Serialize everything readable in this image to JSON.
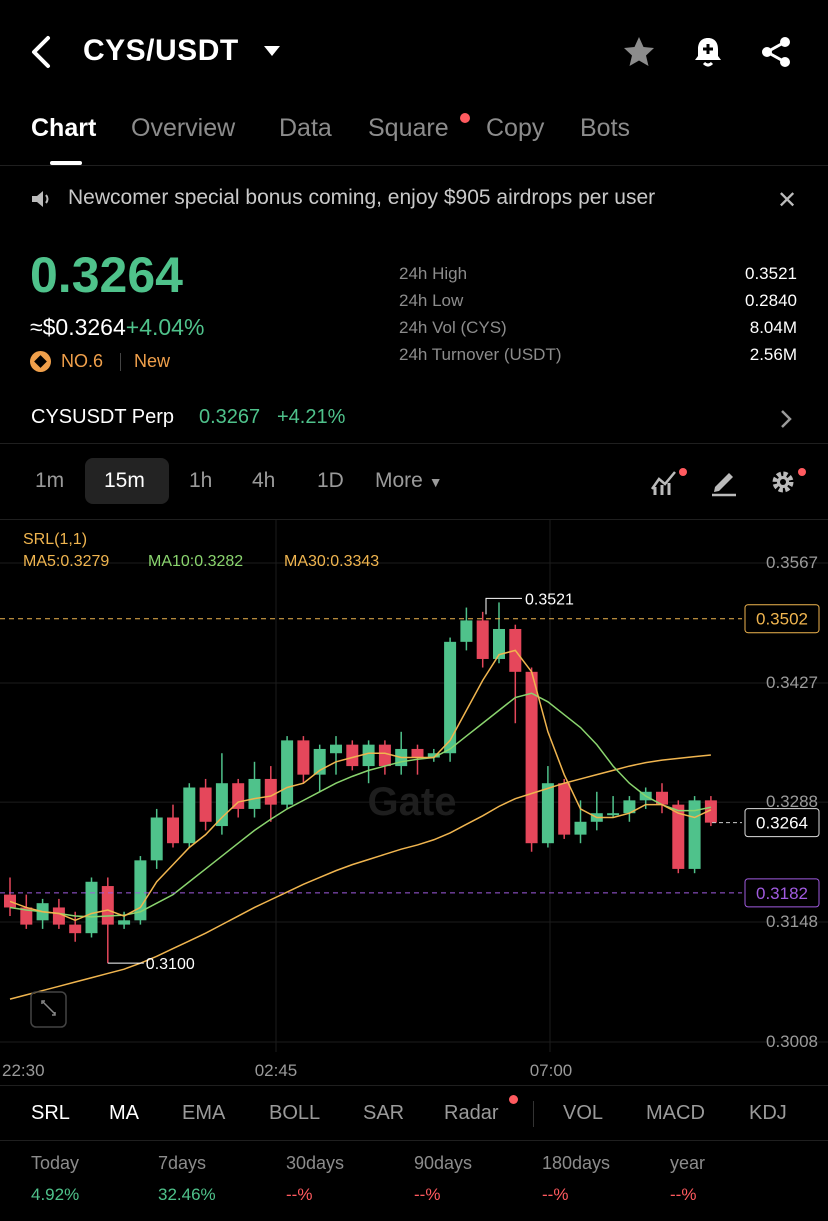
{
  "header": {
    "pair": "CYS/USDT",
    "icons": [
      "back-arrow-icon",
      "dropdown-caret-icon",
      "star-icon",
      "bell-plus-icon",
      "share-icon"
    ]
  },
  "tabs": [
    {
      "label": "Chart",
      "active": true
    },
    {
      "label": "Overview"
    },
    {
      "label": "Data"
    },
    {
      "label": "Square",
      "badge": true
    },
    {
      "label": "Copy"
    },
    {
      "label": "Bots"
    }
  ],
  "notice": {
    "text": "Newcomer special bonus coming, enjoy $905 airdrops per user"
  },
  "price": {
    "last": "0.3264",
    "usd": "≈$0.3264",
    "change": "+4.04%",
    "rank": "NO.6",
    "tag": "New"
  },
  "stats": [
    {
      "label": "24h High",
      "value": "0.3521"
    },
    {
      "label": "24h Low",
      "value": "0.2840"
    },
    {
      "label": "24h Vol (CYS)",
      "value": "8.04M"
    },
    {
      "label": "24h Turnover (USDT)",
      "value": "2.56M"
    }
  ],
  "perp": {
    "name": "CYSUSDT Perp",
    "price": "0.3267",
    "change": "+4.21%"
  },
  "timeframes": {
    "items": [
      "1m",
      "15m",
      "1h",
      "4h",
      "1D"
    ],
    "active": "15m",
    "more": "More"
  },
  "legend": {
    "srl": "SRL(1,1)",
    "ma5": "MA5:0.3279",
    "ma10": "MA10:0.3282",
    "ma30": "MA30:0.3343"
  },
  "indicators": {
    "items": [
      "SRL",
      "MA",
      "EMA",
      "BOLL",
      "SAR",
      "Radar",
      "VOL",
      "MACD",
      "KDJ"
    ],
    "active": [
      "SRL",
      "MA"
    ]
  },
  "performance": [
    {
      "label": "Today",
      "value": "4.92%"
    },
    {
      "label": "7days",
      "value": "32.46%"
    },
    {
      "label": "30days",
      "value": "--%"
    },
    {
      "label": "90days",
      "value": "--%"
    },
    {
      "label": "180days",
      "value": "--%"
    },
    {
      "label": "year",
      "value": "--%"
    }
  ],
  "colors": {
    "up": "#4fc28b",
    "down": "#e5475b",
    "ma5": "#f0b54f",
    "ma10": "#8ad46e",
    "ma30": "#f0b54f",
    "support": "#a15be0",
    "negative": "#ff5a5f"
  },
  "chart_data": {
    "type": "candlestick",
    "y_ticks": [
      "0.3567",
      "0.3427",
      "0.3288",
      "0.3148",
      "0.3008"
    ],
    "x_ticks": [
      "22:30",
      "02:45",
      "07:00"
    ],
    "ylim": [
      0.3008,
      0.3567
    ],
    "price_tag": "0.3264",
    "resistance": "0.3502",
    "support": "0.3182",
    "high_label": "0.3521",
    "low_label": "0.3100",
    "candles": [
      [
        0.318,
        0.3165,
        0.32,
        0.3155
      ],
      [
        0.3165,
        0.3145,
        0.318,
        0.314
      ],
      [
        0.315,
        0.317,
        0.3175,
        0.314
      ],
      [
        0.3165,
        0.3145,
        0.3175,
        0.314
      ],
      [
        0.3145,
        0.3135,
        0.316,
        0.3125
      ],
      [
        0.3135,
        0.3195,
        0.32,
        0.313
      ],
      [
        0.319,
        0.3145,
        0.32,
        0.31
      ],
      [
        0.3145,
        0.315,
        0.316,
        0.314
      ],
      [
        0.315,
        0.322,
        0.3225,
        0.3145
      ],
      [
        0.322,
        0.327,
        0.328,
        0.321
      ],
      [
        0.327,
        0.324,
        0.3285,
        0.3235
      ],
      [
        0.324,
        0.3305,
        0.331,
        0.3235
      ],
      [
        0.3305,
        0.3265,
        0.3315,
        0.3255
      ],
      [
        0.326,
        0.331,
        0.3345,
        0.325
      ],
      [
        0.331,
        0.328,
        0.3315,
        0.327
      ],
      [
        0.328,
        0.3315,
        0.3335,
        0.327
      ],
      [
        0.3315,
        0.3285,
        0.333,
        0.3265
      ],
      [
        0.3285,
        0.336,
        0.3365,
        0.328
      ],
      [
        0.336,
        0.332,
        0.3365,
        0.331
      ],
      [
        0.332,
        0.335,
        0.3355,
        0.33
      ],
      [
        0.3345,
        0.3355,
        0.3365,
        0.332
      ],
      [
        0.3355,
        0.333,
        0.336,
        0.3325
      ],
      [
        0.333,
        0.3355,
        0.336,
        0.331
      ],
      [
        0.3355,
        0.333,
        0.336,
        0.332
      ],
      [
        0.333,
        0.335,
        0.337,
        0.332
      ],
      [
        0.335,
        0.334,
        0.3355,
        0.332
      ],
      [
        0.334,
        0.3345,
        0.335,
        0.3335
      ],
      [
        0.3345,
        0.3475,
        0.348,
        0.3335
      ],
      [
        0.3475,
        0.35,
        0.3515,
        0.3465
      ],
      [
        0.35,
        0.3455,
        0.351,
        0.3445
      ],
      [
        0.3455,
        0.349,
        0.3521,
        0.345
      ],
      [
        0.349,
        0.344,
        0.3495,
        0.338
      ],
      [
        0.344,
        0.324,
        0.3445,
        0.323
      ],
      [
        0.324,
        0.331,
        0.333,
        0.3235
      ],
      [
        0.331,
        0.325,
        0.3315,
        0.3245
      ],
      [
        0.325,
        0.3265,
        0.329,
        0.324
      ],
      [
        0.3265,
        0.3275,
        0.33,
        0.3255
      ],
      [
        0.3275,
        0.3275,
        0.3295,
        0.327
      ],
      [
        0.3275,
        0.329,
        0.3295,
        0.3265
      ],
      [
        0.329,
        0.33,
        0.3305,
        0.328
      ],
      [
        0.33,
        0.3285,
        0.331,
        0.3275
      ],
      [
        0.3285,
        0.321,
        0.329,
        0.3205
      ],
      [
        0.321,
        0.329,
        0.3295,
        0.3205
      ],
      [
        0.329,
        0.3264,
        0.3295,
        0.326
      ]
    ],
    "ma5": [
      0.3172,
      0.3165,
      0.316,
      0.3158,
      0.315,
      0.3158,
      0.3162,
      0.3155,
      0.3165,
      0.3195,
      0.3215,
      0.3235,
      0.325,
      0.327,
      0.3288,
      0.3292,
      0.3295,
      0.3305,
      0.331,
      0.3325,
      0.3335,
      0.334,
      0.3345,
      0.3345,
      0.334,
      0.334,
      0.334,
      0.336,
      0.3395,
      0.343,
      0.346,
      0.3465,
      0.344,
      0.337,
      0.332,
      0.328,
      0.327,
      0.327,
      0.3275,
      0.3285,
      0.3285,
      0.3275,
      0.327,
      0.3279
    ],
    "ma10": [
      0.3165,
      0.3162,
      0.316,
      0.3158,
      0.3155,
      0.3154,
      0.3155,
      0.3156,
      0.316,
      0.317,
      0.318,
      0.3195,
      0.321,
      0.3225,
      0.324,
      0.3255,
      0.3268,
      0.328,
      0.329,
      0.33,
      0.331,
      0.3318,
      0.3325,
      0.333,
      0.3335,
      0.3338,
      0.334,
      0.335,
      0.3365,
      0.338,
      0.3395,
      0.341,
      0.3415,
      0.3405,
      0.339,
      0.3375,
      0.3355,
      0.333,
      0.331,
      0.3295,
      0.3285,
      0.3278,
      0.3278,
      0.3282
    ],
    "ma30": [
      0.3058,
      0.3063,
      0.3068,
      0.3073,
      0.3078,
      0.3083,
      0.3088,
      0.3093,
      0.31,
      0.3108,
      0.3117,
      0.3126,
      0.3135,
      0.3145,
      0.3155,
      0.3165,
      0.3174,
      0.3183,
      0.3192,
      0.32,
      0.3208,
      0.3215,
      0.3221,
      0.3227,
      0.3233,
      0.3238,
      0.3244,
      0.3252,
      0.3262,
      0.3272,
      0.3283,
      0.3292,
      0.3298,
      0.3304,
      0.331,
      0.3315,
      0.332,
      0.3325,
      0.333,
      0.3334,
      0.3337,
      0.3339,
      0.3341,
      0.3343
    ]
  }
}
